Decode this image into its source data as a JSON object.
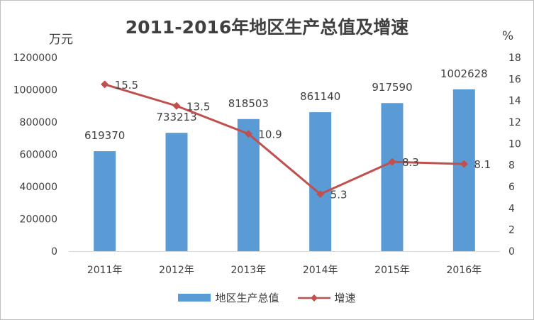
{
  "chart_data": {
    "type": "bar+line",
    "title": "2011-2016年地区生产总值及增速",
    "left_unit": "万元",
    "right_unit": "%",
    "categories": [
      "2011年",
      "2012年",
      "2013年",
      "2014年",
      "2015年",
      "2016年"
    ],
    "series": [
      {
        "name": "地区生产总值",
        "type": "bar",
        "axis": "left",
        "color": "#5b9bd5",
        "values": [
          619370,
          733213,
          818503,
          861140,
          917590,
          1002628
        ],
        "labels": [
          "619370",
          "733213",
          "818503",
          "861140",
          "917590",
          "1002628"
        ]
      },
      {
        "name": "增速",
        "type": "line",
        "axis": "right",
        "color": "#c0504d",
        "marker": "diamond",
        "values": [
          15.5,
          13.5,
          10.9,
          5.3,
          8.3,
          8.1
        ],
        "labels": [
          "15.5",
          "13.5",
          "10.9",
          "5.3",
          "8.3",
          "8.1"
        ]
      }
    ],
    "left_axis": {
      "ylim": [
        0,
        1200000
      ],
      "ticks": [
        0,
        200000,
        400000,
        600000,
        800000,
        1000000,
        1200000
      ],
      "tick_labels": [
        "0",
        "200000",
        "400000",
        "600000",
        "800000",
        "1000000",
        "1200000"
      ]
    },
    "right_axis": {
      "ylim": [
        0,
        18
      ],
      "ticks": [
        0,
        2,
        4,
        6,
        8,
        10,
        12,
        14,
        16,
        18
      ],
      "tick_labels": [
        "0",
        "2",
        "4",
        "6",
        "8",
        "10",
        "12",
        "14",
        "16",
        "18"
      ]
    },
    "grid": false,
    "legend_position": "bottom"
  }
}
